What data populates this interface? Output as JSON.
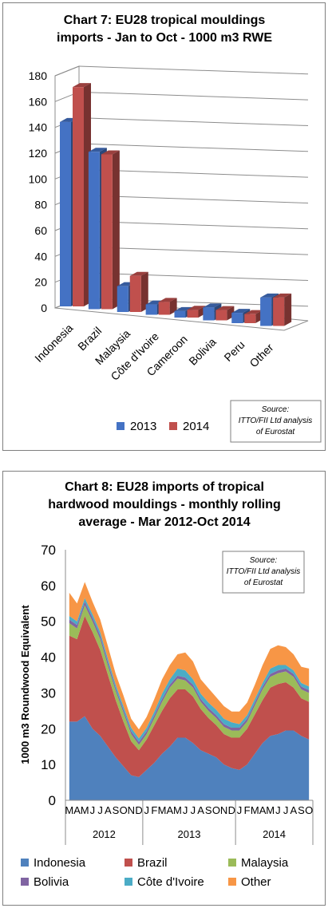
{
  "chart_data": [
    {
      "type": "bar",
      "title_lines": [
        "Chart 7: EU28 tropical mouldings",
        "imports - Jan to Oct - 1000 m3 RWE"
      ],
      "categories": [
        "Indonesia",
        "Brazil",
        "Malaysia",
        "Côte d'Ivoire",
        "Cameroon",
        "Bolivia",
        "Peru",
        "Other"
      ],
      "series": [
        {
          "name": "2013",
          "values": [
            143,
            122,
            20,
            8,
            5,
            10,
            8,
            22
          ],
          "color": "#4472c4"
        },
        {
          "name": "2014",
          "values": [
            170,
            120,
            28,
            10,
            6,
            8,
            7,
            22
          ],
          "color": "#c0504d"
        }
      ],
      "yticks": [
        "0",
        "20",
        "40",
        "60",
        "80",
        "100",
        "120",
        "140",
        "160",
        "180"
      ],
      "ylim": [
        0,
        180
      ],
      "grid": true,
      "legend_position": "bottom",
      "source_lines": [
        "Source:",
        "ITTO/FII Ltd analysis",
        "of Eurostat"
      ]
    },
    {
      "type": "area",
      "title_lines": [
        "Chart 8: EU28 imports of tropical",
        "hardwood mouldings - monthly rolling",
        "average - Mar 2012-Oct 2014"
      ],
      "ylabel": "1000 m3 Roundwood Equivalent",
      "yticks": [
        "0",
        "10",
        "20",
        "30",
        "40",
        "50",
        "60",
        "70"
      ],
      "ylim": [
        0,
        70
      ],
      "month_labels": [
        "M",
        "A",
        "M",
        "J",
        "J",
        "A",
        "S",
        "O",
        "N",
        "D",
        "J",
        "F",
        "M",
        "A",
        "M",
        "J",
        "J",
        "A",
        "S",
        "O",
        "N",
        "D",
        "J",
        "F",
        "M",
        "A",
        "M",
        "J",
        "J",
        "A",
        "S",
        "O"
      ],
      "year_labels": [
        "2012",
        "2013",
        "2014"
      ],
      "series": [
        {
          "name": "Indonesia",
          "color": "#4f81bd",
          "values": [
            22,
            22,
            23.5,
            20,
            18,
            15,
            12,
            9.5,
            7,
            6.5,
            8.5,
            10.5,
            13,
            15,
            17.5,
            17.5,
            16,
            14,
            13,
            12,
            10,
            9,
            8.5,
            10,
            13,
            16,
            18,
            18.5,
            19.5,
            19.5,
            18,
            17
          ]
        },
        {
          "name": "Brazil",
          "color": "#c0504d",
          "values": [
            24,
            23,
            28,
            27,
            24,
            20,
            16,
            12.5,
            9.5,
            7.5,
            8.5,
            10.5,
            12,
            13.5,
            13.5,
            13.5,
            13,
            11.5,
            10,
            9,
            8.5,
            8.5,
            9,
            10,
            11,
            12,
            13.5,
            14,
            13.5,
            12,
            10.5,
            10.5
          ]
        },
        {
          "name": "Malaysia",
          "color": "#9bbb59",
          "values": [
            3.5,
            3,
            3,
            3,
            3,
            2.5,
            2.5,
            2.5,
            2,
            1.5,
            1.5,
            2,
            2.5,
            3,
            3,
            2.5,
            2.5,
            2,
            2,
            2,
            2,
            2,
            2,
            2,
            2.5,
            3,
            3,
            3,
            3,
            3,
            2.5,
            2.5
          ]
        },
        {
          "name": "Bolivia",
          "color": "#8064a2",
          "values": [
            1,
            1,
            1,
            1,
            1,
            1,
            0.8,
            0.8,
            0.8,
            0.8,
            0.8,
            0.8,
            0.8,
            0.8,
            0.8,
            0.8,
            0.8,
            0.8,
            0.8,
            0.8,
            0.8,
            0.8,
            0.8,
            0.8,
            0.8,
            0.8,
            0.8,
            0.8,
            0.8,
            0.8,
            0.8,
            0.8
          ]
        },
        {
          "name": "Côte d'Ivoire",
          "color": "#4bacc6",
          "values": [
            1,
            1,
            1,
            1,
            1,
            1,
            1,
            1,
            1,
            1,
            1,
            1,
            1.5,
            1.5,
            2,
            2,
            1.5,
            1.5,
            1.5,
            1.5,
            1.5,
            1.5,
            1,
            1,
            1,
            1,
            1.5,
            1.5,
            1,
            1,
            1,
            1
          ]
        },
        {
          "name": "Other",
          "color": "#f79646",
          "values": [
            6.5,
            5,
            4.5,
            3.5,
            3.5,
            3.5,
            3,
            3,
            2.5,
            2.5,
            3,
            3.5,
            4,
            4,
            4,
            5,
            5,
            4,
            4,
            3.5,
            3.5,
            3,
            3.5,
            3.5,
            4,
            5,
            5.5,
            5.5,
            5,
            4.5,
            4.5,
            5
          ]
        }
      ],
      "grid": false,
      "legend_position": "bottom",
      "source_lines": [
        "Source:",
        "ITTO/FII Ltd analysis",
        "of Eurostat"
      ]
    }
  ]
}
